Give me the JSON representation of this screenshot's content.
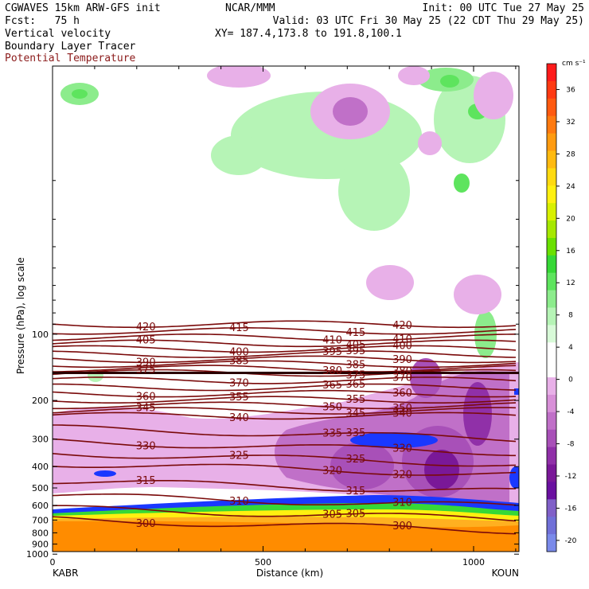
{
  "header": {
    "title_left": "CGWAVES 15km ARW-GFS init",
    "fcst_label": "Fcst:   75 h",
    "field1": "Vertical velocity",
    "field2": "Boundary Layer Tracer",
    "field3": "Potential Temperature",
    "center_title": "NCAR/MMM",
    "xy_label": "XY= 187.4,173.8 to 191.8,100.1",
    "init_label": "Init: 00 UTC Tue 27 May 25",
    "valid_label": "Valid: 03 UTC Fri 30 May 25 (22 CDT Thu 29 May 25)"
  },
  "colors": {
    "theta_contour": "#7a0a0a",
    "field3_text": "#8b1a1a"
  },
  "chart_data": {
    "type": "heatmap",
    "xlabel": "Distance (km)",
    "ylabel": "Pressure (hPa), log scale",
    "x_ticks": [
      "0",
      "500",
      "1000"
    ],
    "xlim": [
      0,
      1110
    ],
    "y_ticks": [
      "100",
      "200",
      "300",
      "400",
      "500",
      "600",
      "700",
      "800",
      "900",
      "1000"
    ],
    "y_scale": "log",
    "left_endpoint": "KABR",
    "right_endpoint": "KOUN",
    "colorbar": {
      "units": "cm s⁻¹",
      "labels": [
        "36",
        "32",
        "28",
        "24",
        "20",
        "16",
        "12",
        "8",
        "4",
        "0",
        "-4",
        "-8",
        "-12",
        "-16",
        "-20"
      ],
      "colors": [
        "#ff1b1b",
        "#ff3a12",
        "#ff5a10",
        "#ff7a10",
        "#ff9b10",
        "#ffba10",
        "#ffda10",
        "#fff010",
        "#d8f000",
        "#a6e800",
        "#6ae000",
        "#36d836",
        "#5ee45e",
        "#8cec8c",
        "#b6f4b6",
        "#d8fad8",
        "#ffffff",
        "#ffffff",
        "#e8b0e8",
        "#d890d8",
        "#c070c8",
        "#a850b8",
        "#9030a8",
        "#7a1898",
        "#6a10a0",
        "#8060c8",
        "#7070d8",
        "#7a8aea"
      ]
    },
    "theta_contours": [
      {
        "value": 420,
        "label": "420"
      },
      {
        "value": 415,
        "label": "415"
      },
      {
        "value": 410,
        "label": "410"
      },
      {
        "value": 405,
        "label": "405"
      },
      {
        "value": 400,
        "label": "400"
      },
      {
        "value": 395,
        "label": "395"
      },
      {
        "value": 390,
        "label": "390"
      },
      {
        "value": 385,
        "label": "385"
      },
      {
        "value": 380,
        "label": "380"
      },
      {
        "value": 375,
        "label": "375"
      },
      {
        "value": 370,
        "label": "370"
      },
      {
        "value": 365,
        "label": "365"
      },
      {
        "value": 360,
        "label": "360"
      },
      {
        "value": 355,
        "label": "355"
      },
      {
        "value": 350,
        "label": "350"
      },
      {
        "value": 345,
        "label": "345"
      },
      {
        "value": 340,
        "label": "340"
      },
      {
        "value": 335,
        "label": "335"
      },
      {
        "value": 330,
        "label": "330"
      },
      {
        "value": 325,
        "label": "325"
      },
      {
        "value": 320,
        "label": "320"
      },
      {
        "value": 315,
        "label": "315"
      },
      {
        "value": 310,
        "label": "310"
      },
      {
        "value": 305,
        "label": "305"
      },
      {
        "value": 300,
        "label": "300"
      }
    ],
    "grid": false,
    "legend": "right"
  }
}
